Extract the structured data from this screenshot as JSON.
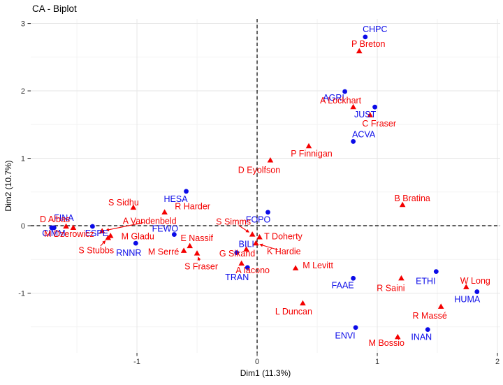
{
  "figure": {
    "title": "CA - Biplot"
  },
  "colors": {
    "committee_blue": "#0B0BE8",
    "member_red": "#F40000",
    "grid_major": "#e6e6e6",
    "grid_minor": "#f3f3f3",
    "axis_text": "#333333",
    "reference_line": "#000000"
  },
  "chart_data": {
    "type": "scatter",
    "title": "CA - Biplot",
    "xlabel": "Dim1 (11.3%)",
    "ylabel": "Dim2 (10.7%)",
    "xlim": [
      -1.884,
      2.023
    ],
    "ylim": [
      -1.886,
      3.068
    ],
    "x_ticks": [
      -1,
      0,
      1,
      2
    ],
    "y_ticks": [
      -1,
      0,
      1,
      2,
      3
    ],
    "x_minor_ticks": [
      -1.5,
      -0.5,
      0.5,
      1.5
    ],
    "y_minor_ticks": [
      -1.5,
      -0.5,
      0.5,
      1.5,
      2.5
    ],
    "grid": true,
    "legend_position": "none",
    "reference_lines": [
      {
        "axis": "x",
        "value": 0,
        "style": "dashed"
      },
      {
        "axis": "y",
        "value": 0,
        "style": "dashed"
      }
    ],
    "series": [
      {
        "name": "committees",
        "marker": "circle",
        "color": "#0B0BE8",
        "points": [
          {
            "label": "CHPC",
            "x": 0.9,
            "y": 2.8,
            "dx": 14,
            "dy": -11
          },
          {
            "label": "AGRI",
            "x": 0.73,
            "y": 1.99,
            "dx": -16,
            "dy": 9
          },
          {
            "label": "JUST",
            "x": 0.98,
            "y": 1.76,
            "dx": -14,
            "dy": 11
          },
          {
            "label": "ACVA",
            "x": 0.8,
            "y": 1.25,
            "dx": 15,
            "dy": -10
          },
          {
            "label": "FOPO",
            "x": 0.09,
            "y": 0.2,
            "dx": -14,
            "dy": 11
          },
          {
            "label": "HESA",
            "x": -0.59,
            "y": 0.51,
            "dx": -15,
            "dy": 11
          },
          {
            "label": "FINA",
            "x": -1.69,
            "y": -0.03,
            "dx": 14,
            "dy": -14
          },
          {
            "label": "CIMM",
            "x": -1.71,
            "y": -0.03,
            "dx": 3,
            "dy": 8
          },
          {
            "label": "ESPE",
            "x": -1.37,
            "y": -0.01,
            "dx": 6,
            "dy": 10
          },
          {
            "label": "FEWO",
            "x": -0.69,
            "y": -0.13,
            "dx": -13,
            "dy": -8
          },
          {
            "label": "RNNR",
            "x": -1.01,
            "y": -0.26,
            "dx": -10,
            "dy": 14
          },
          {
            "label": "BILI",
            "x": -0.17,
            "y": -0.4,
            "dx": 14,
            "dy": -12
          },
          {
            "label": "TRAN",
            "x": -0.08,
            "y": -0.62,
            "dx": -15,
            "dy": 14
          },
          {
            "label": "FAAE",
            "x": 0.8,
            "y": -0.78,
            "dx": -15,
            "dy": 10
          },
          {
            "label": "ETHI",
            "x": 1.49,
            "y": -0.68,
            "dx": -15,
            "dy": 14
          },
          {
            "label": "HUMA",
            "x": 1.83,
            "y": -0.98,
            "dx": -14,
            "dy": 11
          },
          {
            "label": "ENVI",
            "x": 0.82,
            "y": -1.51,
            "dx": -15,
            "dy": 12
          },
          {
            "label": "INAN",
            "x": 1.42,
            "y": -1.54,
            "dx": -9,
            "dy": 11
          }
        ]
      },
      {
        "name": "members",
        "marker": "triangle",
        "color": "#F40000",
        "points": [
          {
            "label": "P Breton",
            "x": 0.85,
            "y": 2.59,
            "dx": 13,
            "dy": -10
          },
          {
            "label": "A Lockhart",
            "x": 0.8,
            "y": 1.76,
            "dx": -18,
            "dy": -9
          },
          {
            "label": "C Fraser",
            "x": 0.94,
            "y": 1.64,
            "dx": 13,
            "dy": 12
          },
          {
            "label": "P Finnigan",
            "x": 0.43,
            "y": 1.18,
            "dx": 4,
            "dy": 11
          },
          {
            "label": "D Eyolfson",
            "x": 0.11,
            "y": 0.97,
            "dx": -16,
            "dy": 14
          },
          {
            "label": "B Bratina",
            "x": 1.21,
            "y": 0.31,
            "dx": 14,
            "dy": -9
          },
          {
            "label": "S Sidhu",
            "x": -1.03,
            "y": 0.27,
            "dx": -14,
            "dy": -7
          },
          {
            "label": "R Harder",
            "x": -0.77,
            "y": 0.2,
            "dx": 40,
            "dy": -8
          },
          {
            "label": "D Albas",
            "x": -1.59,
            "y": -0.01,
            "dx": -16,
            "dy": -10
          },
          {
            "label": "M Dzerowicz",
            "x": -1.53,
            "y": -0.03,
            "dx": -6,
            "dy": 9
          },
          {
            "label": "A Vandenbeld",
            "x": -1.29,
            "y": -0.08,
            "dx": 68,
            "dy": -14,
            "leader": true
          },
          {
            "label": "M Gladu",
            "x": -1.22,
            "y": -0.15,
            "dx": 39,
            "dy": 1
          },
          {
            "label": "S Stubbs",
            "x": -1.24,
            "y": -0.18,
            "dx": -17,
            "dy": 18,
            "leader": true
          },
          {
            "label": "E Nassif",
            "x": -0.56,
            "y": -0.3,
            "dx": 10,
            "dy": -11
          },
          {
            "label": "M Serré",
            "x": -0.61,
            "y": -0.37,
            "dx": -29,
            "dy": 2
          },
          {
            "label": "S Fraser",
            "x": -0.5,
            "y": -0.41,
            "dx": 6,
            "dy": 19,
            "leader": true
          },
          {
            "label": "S Simms",
            "x": -0.04,
            "y": -0.13,
            "dx": -27,
            "dy": -18,
            "leader": true
          },
          {
            "label": "T Doherty",
            "x": 0.02,
            "y": -0.17,
            "dx": 34,
            "dy": -1
          },
          {
            "label": "K Hardie",
            "x": -0.01,
            "y": -0.26,
            "dx": 40,
            "dy": 12,
            "leader": true
          },
          {
            "label": "G Sikand",
            "x": -0.09,
            "y": -0.35,
            "dx": -13,
            "dy": 6
          },
          {
            "label": "A Iacono",
            "x": -0.13,
            "y": -0.56,
            "dx": 16,
            "dy": 10
          },
          {
            "label": "M Levitt",
            "x": 0.32,
            "y": -0.63,
            "dx": 32,
            "dy": -4
          },
          {
            "label": "R Saini",
            "x": 1.2,
            "y": -0.78,
            "dx": -15,
            "dy": 14
          },
          {
            "label": "W Long",
            "x": 1.74,
            "y": -0.91,
            "dx": 13,
            "dy": -9
          },
          {
            "label": "L Duncan",
            "x": 0.38,
            "y": -1.15,
            "dx": -13,
            "dy": 12
          },
          {
            "label": "R Massé",
            "x": 1.53,
            "y": -1.2,
            "dx": -16,
            "dy": 13
          },
          {
            "label": "M Bossio",
            "x": 1.17,
            "y": -1.65,
            "dx": -16,
            "dy": 9
          }
        ]
      }
    ]
  }
}
